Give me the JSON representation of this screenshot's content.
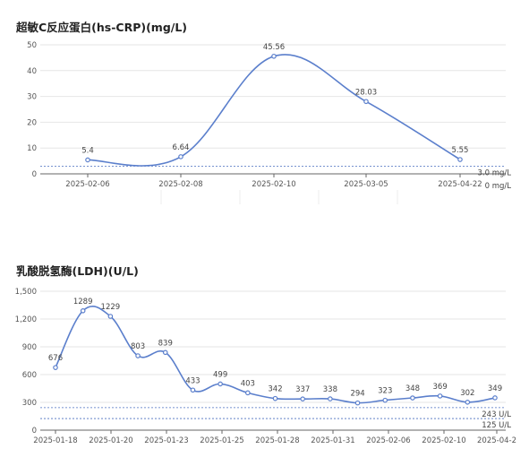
{
  "chart_data": [
    {
      "type": "line",
      "title": "超敏C反应蛋白(hs-CRP)(mg/L)",
      "categories": [
        "2025-02-06",
        "2025-02-08",
        "2025-02-10",
        "2025-03-05",
        "2025-04-22"
      ],
      "values": [
        5.4,
        6.64,
        45.56,
        28.03,
        5.55
      ],
      "data_labels": [
        "5.4",
        "6.64",
        "45.56",
        "28.03",
        "5.55"
      ],
      "ylim": [
        0,
        50
      ],
      "yticks": [
        "0",
        "10",
        "20",
        "30",
        "40",
        "50"
      ],
      "yticks_values": [
        0,
        10,
        20,
        30,
        40,
        50
      ],
      "reference_lines": [
        {
          "value": 3.0,
          "label": "3.0 mg/L"
        },
        {
          "value": 0,
          "label": "0 mg/L"
        }
      ],
      "grid": true,
      "line_color": "#5b7fcc"
    },
    {
      "type": "line",
      "title": "乳酸脱氢酶(LDH)(U/L)",
      "values": [
        676,
        1289,
        1229,
        803,
        839,
        433,
        499,
        403,
        342,
        337,
        338,
        294,
        323,
        348,
        369,
        302,
        349
      ],
      "data_labels": [
        "676",
        "1289",
        "1229",
        "803",
        "839",
        "433",
        "499",
        "403",
        "342",
        "337",
        "338",
        "294",
        "323",
        "348",
        "369",
        "302",
        "349"
      ],
      "tick_labels": [
        "2025-01-18",
        "2025-01-20",
        "2025-01-23",
        "2025-01-25",
        "2025-01-28",
        "2025-01-31",
        "2025-02-06",
        "2025-02-10",
        "2025-04-2"
      ],
      "ylim": [
        0,
        1500
      ],
      "yticks": [
        "0",
        "300",
        "600",
        "900",
        "1,200",
        "1,500"
      ],
      "yticks_values": [
        0,
        300,
        600,
        900,
        1200,
        1500
      ],
      "reference_lines": [
        {
          "value": 243,
          "label": "243 U/L"
        },
        {
          "value": 125,
          "label": "125 U/L"
        }
      ],
      "grid": true,
      "line_color": "#5b7fcc"
    }
  ]
}
